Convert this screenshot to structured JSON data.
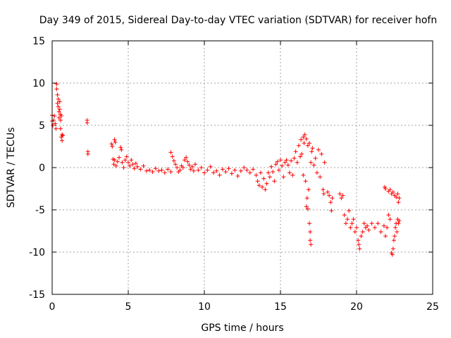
{
  "chart_data": {
    "type": "scatter",
    "title": "Day 349 of 2015, Sidereal Day-to-day VTEC variation (SDTVAR) for receiver hofn",
    "xlabel": "GPS time / hours",
    "ylabel": "SDTVAR / TECUs",
    "xlim": [
      0,
      25
    ],
    "ylim": [
      -15,
      15
    ],
    "x_ticks": [
      0,
      5,
      10,
      15,
      20,
      25
    ],
    "y_ticks": [
      -15,
      -10,
      -5,
      0,
      5,
      10,
      15
    ],
    "x_tick_labels": [
      "0",
      "5",
      "10",
      "15",
      "20",
      "25"
    ],
    "y_tick_labels": [
      "-15",
      "-10",
      "-5",
      "0",
      "5",
      "10",
      "15"
    ],
    "grid": true,
    "marker": "+",
    "marker_color": "#ff0000",
    "series": [
      {
        "name": "SDTVAR",
        "points": [
          [
            0.0,
            6.2
          ],
          [
            0.0,
            5.5
          ],
          [
            0.05,
            5.0
          ],
          [
            0.1,
            5.6
          ],
          [
            0.15,
            6.1
          ],
          [
            0.2,
            5.2
          ],
          [
            0.25,
            4.6
          ],
          [
            0.3,
            9.9
          ],
          [
            0.3,
            9.3
          ],
          [
            0.35,
            8.6
          ],
          [
            0.35,
            7.6
          ],
          [
            0.4,
            7.2
          ],
          [
            0.4,
            8.1
          ],
          [
            0.45,
            6.6
          ],
          [
            0.45,
            5.9
          ],
          [
            0.5,
            6.9
          ],
          [
            0.5,
            7.8
          ],
          [
            0.55,
            6.3
          ],
          [
            0.55,
            5.6
          ],
          [
            0.55,
            4.6
          ],
          [
            0.6,
            6.1
          ],
          [
            0.6,
            3.6
          ],
          [
            0.65,
            3.9
          ],
          [
            0.65,
            3.2
          ],
          [
            0.7,
            3.8
          ],
          [
            2.3,
            5.6
          ],
          [
            2.3,
            5.3
          ],
          [
            2.35,
            1.9
          ],
          [
            2.35,
            1.6
          ],
          [
            3.9,
            2.8
          ],
          [
            3.95,
            2.5
          ],
          [
            4.0,
            1.0
          ],
          [
            4.05,
            0.4
          ],
          [
            4.1,
            0.9
          ],
          [
            4.1,
            3.3
          ],
          [
            4.15,
            3.0
          ],
          [
            4.2,
            0.2
          ],
          [
            4.3,
            0.7
          ],
          [
            4.4,
            1.2
          ],
          [
            4.5,
            2.4
          ],
          [
            4.55,
            2.1
          ],
          [
            4.6,
            0.6
          ],
          [
            4.7,
            0.0
          ],
          [
            4.8,
            0.9
          ],
          [
            4.9,
            1.3
          ],
          [
            5.0,
            0.6
          ],
          [
            5.1,
            0.2
          ],
          [
            5.2,
            0.9
          ],
          [
            5.3,
            0.4
          ],
          [
            5.4,
            -0.1
          ],
          [
            5.5,
            0.5
          ],
          [
            5.6,
            0.1
          ],
          [
            5.8,
            -0.2
          ],
          [
            6.0,
            0.2
          ],
          [
            6.2,
            -0.4
          ],
          [
            6.4,
            -0.3
          ],
          [
            6.6,
            -0.5
          ],
          [
            6.8,
            -0.1
          ],
          [
            7.0,
            -0.4
          ],
          [
            7.2,
            -0.3
          ],
          [
            7.4,
            -0.6
          ],
          [
            7.6,
            -0.2
          ],
          [
            7.8,
            -0.5
          ],
          [
            7.8,
            1.8
          ],
          [
            7.9,
            1.3
          ],
          [
            8.0,
            0.8
          ],
          [
            8.1,
            0.4
          ],
          [
            8.2,
            0.0
          ],
          [
            8.3,
            -0.5
          ],
          [
            8.4,
            -0.3
          ],
          [
            8.5,
            0.2
          ],
          [
            8.6,
            0.0
          ],
          [
            8.7,
            0.9
          ],
          [
            8.8,
            1.2
          ],
          [
            8.9,
            0.7
          ],
          [
            9.0,
            0.3
          ],
          [
            9.1,
            -0.2
          ],
          [
            9.2,
            0.1
          ],
          [
            9.3,
            -0.4
          ],
          [
            9.4,
            0.4
          ],
          [
            9.6,
            -0.3
          ],
          [
            9.8,
            0.0
          ],
          [
            10.0,
            -0.6
          ],
          [
            10.2,
            -0.3
          ],
          [
            10.4,
            0.1
          ],
          [
            10.6,
            -0.6
          ],
          [
            10.8,
            -0.4
          ],
          [
            11.0,
            -0.9
          ],
          [
            11.2,
            -0.2
          ],
          [
            11.4,
            -0.5
          ],
          [
            11.6,
            -0.1
          ],
          [
            11.8,
            -0.7
          ],
          [
            12.0,
            -0.3
          ],
          [
            12.2,
            -1.0
          ],
          [
            12.4,
            -0.4
          ],
          [
            12.6,
            0.0
          ],
          [
            12.8,
            -0.3
          ],
          [
            13.0,
            -0.6
          ],
          [
            13.2,
            -0.2
          ],
          [
            13.4,
            -0.9
          ],
          [
            13.5,
            -1.6
          ],
          [
            13.6,
            -2.1
          ],
          [
            13.7,
            -0.6
          ],
          [
            13.8,
            -2.3
          ],
          [
            13.9,
            -1.3
          ],
          [
            14.0,
            -2.6
          ],
          [
            14.1,
            -1.9
          ],
          [
            14.2,
            -0.6
          ],
          [
            14.3,
            -1.1
          ],
          [
            14.4,
            0.1
          ],
          [
            14.5,
            -0.5
          ],
          [
            14.6,
            -1.6
          ],
          [
            14.7,
            0.4
          ],
          [
            14.8,
            0.7
          ],
          [
            14.9,
            -0.3
          ],
          [
            15.0,
            0.9
          ],
          [
            15.1,
            0.2
          ],
          [
            15.2,
            -1.1
          ],
          [
            15.3,
            0.6
          ],
          [
            15.4,
            0.9
          ],
          [
            15.5,
            0.3
          ],
          [
            15.6,
            -0.6
          ],
          [
            15.7,
            0.8
          ],
          [
            15.8,
            -0.9
          ],
          [
            15.9,
            1.1
          ],
          [
            16.0,
            1.9
          ],
          [
            16.1,
            0.6
          ],
          [
            16.2,
            2.6
          ],
          [
            16.3,
            1.3
          ],
          [
            16.35,
            3.3
          ],
          [
            16.4,
            1.6
          ],
          [
            16.5,
            3.6
          ],
          [
            16.5,
            -0.9
          ],
          [
            16.55,
            2.9
          ],
          [
            16.6,
            3.9
          ],
          [
            16.65,
            -1.6
          ],
          [
            16.7,
            3.4
          ],
          [
            16.7,
            -4.6
          ],
          [
            16.75,
            -3.6
          ],
          [
            16.8,
            2.6
          ],
          [
            16.8,
            -4.9
          ],
          [
            16.85,
            -2.6
          ],
          [
            16.9,
            2.9
          ],
          [
            16.9,
            -6.6
          ],
          [
            16.95,
            -7.6
          ],
          [
            16.95,
            -8.6
          ],
          [
            17.0,
            -9.1
          ],
          [
            17.0,
            0.6
          ],
          [
            17.05,
            1.9
          ],
          [
            17.1,
            2.3
          ],
          [
            17.2,
            0.3
          ],
          [
            17.3,
            1.1
          ],
          [
            17.4,
            -0.6
          ],
          [
            17.5,
            2.1
          ],
          [
            17.6,
            -1.1
          ],
          [
            17.7,
            1.6
          ],
          [
            17.8,
            -2.6
          ],
          [
            17.85,
            -3.1
          ],
          [
            17.9,
            0.6
          ],
          [
            18.1,
            -2.9
          ],
          [
            18.2,
            -3.3
          ],
          [
            18.3,
            -4.1
          ],
          [
            18.35,
            -5.1
          ],
          [
            18.4,
            -3.6
          ],
          [
            18.9,
            -3.1
          ],
          [
            19.0,
            -3.6
          ],
          [
            19.1,
            -3.3
          ],
          [
            19.2,
            -5.6
          ],
          [
            19.3,
            -6.6
          ],
          [
            19.4,
            -6.1
          ],
          [
            19.5,
            -5.1
          ],
          [
            19.6,
            -7.1
          ],
          [
            19.7,
            -6.6
          ],
          [
            19.8,
            -6.1
          ],
          [
            19.9,
            -7.6
          ],
          [
            20.0,
            -7.1
          ],
          [
            20.1,
            -8.6
          ],
          [
            20.15,
            -9.1
          ],
          [
            20.2,
            -9.6
          ],
          [
            20.3,
            -8.1
          ],
          [
            20.4,
            -7.6
          ],
          [
            20.5,
            -6.6
          ],
          [
            20.6,
            -7.1
          ],
          [
            20.7,
            -6.9
          ],
          [
            20.8,
            -7.4
          ],
          [
            21.0,
            -6.6
          ],
          [
            21.2,
            -7.1
          ],
          [
            21.4,
            -6.6
          ],
          [
            21.6,
            -7.6
          ],
          [
            21.8,
            -6.9
          ],
          [
            21.9,
            -8.1
          ],
          [
            22.0,
            -7.1
          ],
          [
            22.1,
            -5.6
          ],
          [
            22.2,
            -6.1
          ],
          [
            22.3,
            -10.1
          ],
          [
            22.35,
            -10.3
          ],
          [
            22.4,
            -9.6
          ],
          [
            22.45,
            -8.6
          ],
          [
            22.5,
            -8.1
          ],
          [
            22.55,
            -7.1
          ],
          [
            22.6,
            -6.6
          ],
          [
            22.65,
            -7.6
          ],
          [
            22.7,
            -6.1
          ],
          [
            22.75,
            -6.6
          ],
          [
            22.8,
            -6.3
          ],
          [
            21.85,
            -2.3
          ],
          [
            21.9,
            -2.5
          ],
          [
            22.1,
            -2.8
          ],
          [
            22.2,
            -2.6
          ],
          [
            22.3,
            -3.1
          ],
          [
            22.4,
            -2.9
          ],
          [
            22.5,
            -3.3
          ],
          [
            22.6,
            -3.5
          ],
          [
            22.7,
            -3.1
          ],
          [
            22.75,
            -4.1
          ],
          [
            22.8,
            -3.6
          ]
        ]
      }
    ]
  }
}
